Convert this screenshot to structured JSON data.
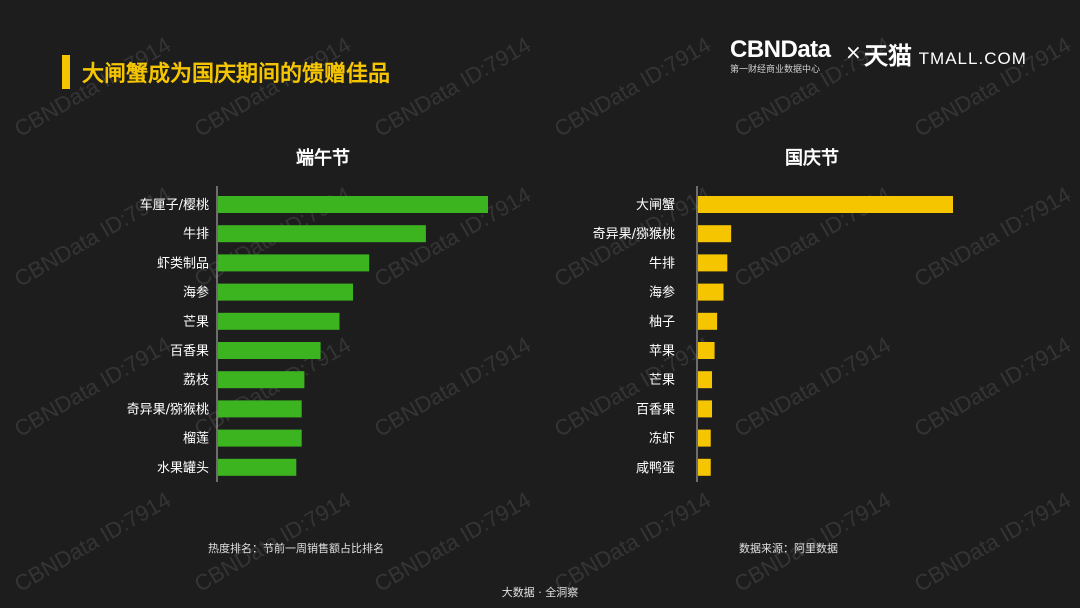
{
  "header": {
    "title": "大闸蟹成为国庆期间的馈赠佳品",
    "logo_main": "CBNData",
    "logo_sub": "第一财经商业数据中心",
    "logo_x": "×",
    "logo_tmall_cn": "天猫",
    "logo_tmall_en": "TMALL.COM"
  },
  "watermark_text": "CBNData ID:7914",
  "colors": {
    "accent": "#f5c600",
    "green": "#3cb420",
    "yellow": "#f5c600",
    "background": "#1d1d1d"
  },
  "chart_data": [
    {
      "type": "bar",
      "orientation": "horizontal",
      "title": "端午节",
      "categories": [
        "车厘子/樱桃",
        "牛排",
        "虾类制品",
        "海参",
        "芒果",
        "百香果",
        "荔枝",
        "奇异果/猕猴桃",
        "榴莲",
        "水果罐头"
      ],
      "values": [
        100,
        77,
        56,
        50,
        45,
        38,
        32,
        31,
        31,
        29
      ],
      "unit_note": "relative share, estimated (no axis shown)",
      "color": "#3cb420",
      "note": "热度排名：节前一周销售额占比排名"
    },
    {
      "type": "bar",
      "orientation": "horizontal",
      "title": "国庆节",
      "categories": [
        "大闸蟹",
        "奇异果/猕猴桃",
        "牛排",
        "海参",
        "柚子",
        "苹果",
        "芒果",
        "百香果",
        "冻虾",
        "咸鸭蛋"
      ],
      "values": [
        100,
        13,
        11.5,
        10,
        7.5,
        6.5,
        5.5,
        5.5,
        5,
        5
      ],
      "unit_note": "relative share, estimated (no axis shown)",
      "color": "#f5c600",
      "note": "数据来源：阿里数据"
    }
  ],
  "footer": "大数据 · 全洞察"
}
